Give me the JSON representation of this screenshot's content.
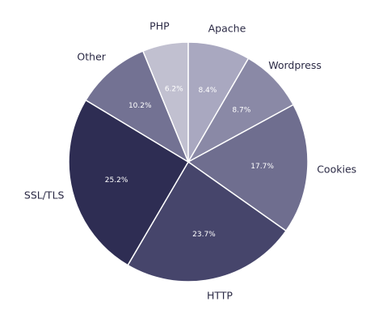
{
  "chart_data": {
    "type": "pie",
    "categories": [
      "PHP",
      "Apache",
      "Wordpress",
      "Cookies",
      "HTTP",
      "SSL/TLS",
      "Other"
    ],
    "values": [
      6.2,
      8.4,
      8.7,
      17.7,
      23.7,
      25.2,
      10.2
    ],
    "value_labels": [
      "6.2%",
      "8.4%",
      "8.7%",
      "17.7%",
      "23.7%",
      "25.2%",
      "10.2%"
    ],
    "colors": [
      "#c1c0d0",
      "#a9a8c0",
      "#8a89a6",
      "#6f6e8f",
      "#46456b",
      "#2e2d53",
      "#737293"
    ]
  }
}
